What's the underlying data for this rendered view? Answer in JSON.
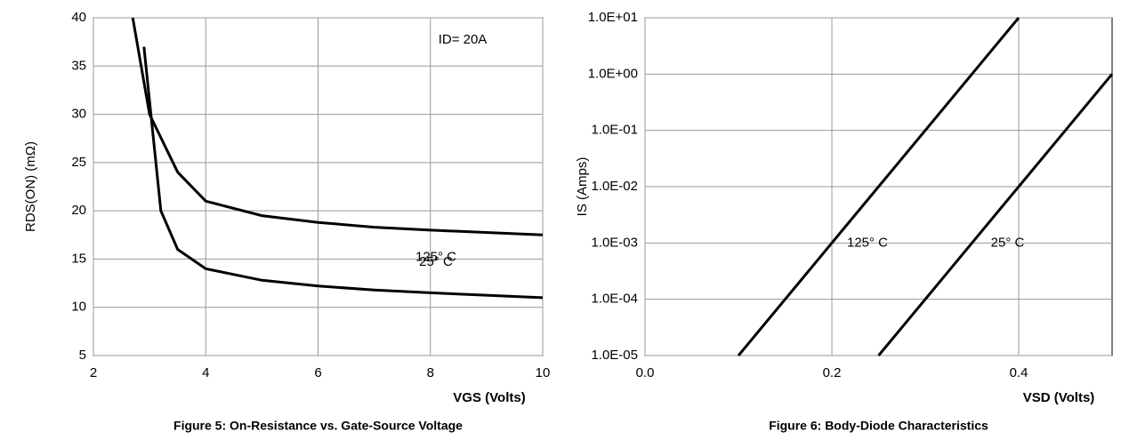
{
  "chart_data": [
    {
      "type": "line",
      "title": "Figure 5: On-Resistance vs. Gate-Source Voltage",
      "x_label": "VGS (Volts)",
      "y_label": "RDS(ON) (mΩ)",
      "annotation": "ID= 20A",
      "xlim": [
        2,
        10
      ],
      "xticks": [
        2,
        4,
        6,
        8,
        10
      ],
      "ylim": [
        5,
        40
      ],
      "yticks": [
        5,
        10,
        15,
        20,
        25,
        30,
        35,
        40
      ],
      "grid": true,
      "log_y": false,
      "series": [
        {
          "name": "125° C",
          "color": "#000000",
          "x": [
            2.7,
            3,
            3.5,
            4,
            5,
            6,
            7,
            8,
            10
          ],
          "values": [
            40,
            30,
            24,
            21,
            19.5,
            18.8,
            18.3,
            18,
            17.5
          ]
        },
        {
          "name": "25° C",
          "color": "#000000",
          "x": [
            2.9,
            3.2,
            3.5,
            4,
            5,
            6,
            7,
            8,
            10
          ],
          "values": [
            37,
            20,
            16,
            14,
            12.8,
            12.2,
            11.8,
            11.5,
            11
          ]
        }
      ]
    },
    {
      "type": "line",
      "title": "Figure 6: Body-Diode Characteristics",
      "x_label": "VSD (Volts)",
      "y_label": "IS (Amps)",
      "xlim": [
        0,
        0.5
      ],
      "xticks": [
        {
          "value": 0,
          "label": "0.0"
        },
        {
          "value": 0.2,
          "label": "0.2"
        },
        {
          "value": 0.4,
          "label": "0.4"
        }
      ],
      "ylim": [
        1e-05,
        10
      ],
      "yticks": [
        {
          "value": 1e-05,
          "label": "1.0E-05"
        },
        {
          "value": 0.0001,
          "label": "1.0E-04"
        },
        {
          "value": 0.001,
          "label": "1.0E-03"
        },
        {
          "value": 0.01,
          "label": "1.0E-02"
        },
        {
          "value": 0.1,
          "label": "1.0E-01"
        },
        {
          "value": 1,
          "label": "1.0E+00"
        },
        {
          "value": 10,
          "label": "1.0E+01"
        }
      ],
      "grid": true,
      "log_y": true,
      "series": [
        {
          "name": "125° C",
          "color": "#000000",
          "x": [
            0.1,
            0.15,
            0.2,
            0.25,
            0.3,
            0.35,
            0.4
          ],
          "values": [
            1e-05,
            0.0001,
            0.001,
            0.01,
            0.1,
            1,
            10
          ]
        },
        {
          "name": "25° C",
          "color": "#000000",
          "x": [
            0.25,
            0.3,
            0.35,
            0.4,
            0.45,
            0.5
          ],
          "values": [
            1e-05,
            0.0001,
            0.001,
            0.01,
            0.1,
            1
          ]
        }
      ]
    }
  ]
}
